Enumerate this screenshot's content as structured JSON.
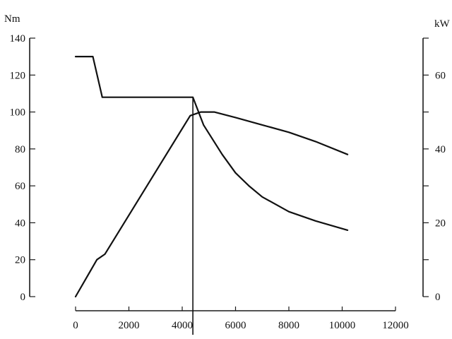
{
  "chart_data": {
    "type": "line",
    "title": "",
    "y_left_unit": "Nm",
    "y_right_unit": "kW",
    "xlim": [
      0,
      12000
    ],
    "ylim_left": [
      0,
      140
    ],
    "ylim_right": [
      0,
      70
    ],
    "x_ticks": [
      0,
      2000,
      4000,
      6000,
      8000,
      10000,
      12000
    ],
    "y_left_ticks": [
      0,
      20,
      40,
      60,
      80,
      100,
      120,
      140
    ],
    "y_right_ticks": [
      0,
      20,
      40,
      60
    ],
    "grid": false,
    "series": [
      {
        "axis": "left",
        "x": [
          0,
          650,
          1000,
          4400,
          4800,
          5500,
          6000,
          6500,
          7000,
          8000,
          9000,
          10200
        ],
        "values": [
          130,
          130,
          108,
          108,
          93,
          77,
          67,
          60,
          54,
          46,
          41,
          36
        ]
      },
      {
        "axis": "right",
        "x": [
          0,
          800,
          1100,
          4300,
          4700,
          5200,
          6000,
          7000,
          8000,
          9000,
          10200
        ],
        "values": [
          0,
          10,
          11.5,
          49,
          50,
          50,
          48.5,
          46.5,
          44.5,
          42,
          38.5
        ]
      }
    ],
    "annotations": [
      {
        "type": "vertical-line",
        "x": 4400
      }
    ]
  }
}
